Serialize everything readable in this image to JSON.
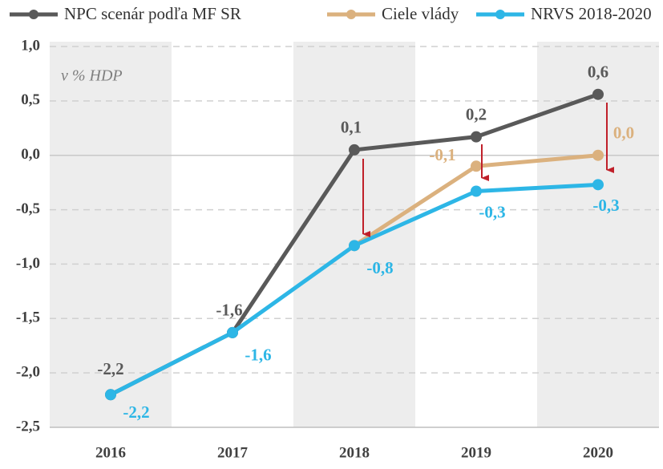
{
  "chart_data": {
    "type": "line",
    "annotation": "v % HDP",
    "categories": [
      "2016",
      "2017",
      "2018",
      "2019",
      "2020"
    ],
    "series": [
      {
        "name": "NPC scenár podľa MF SR",
        "color": "#595959",
        "values": [
          -2.2,
          -1.63,
          0.05,
          0.17,
          0.56
        ],
        "value_labels": [
          "-2,2",
          "-1,6",
          "0,1",
          "0,2",
          "0,6"
        ]
      },
      {
        "name": "Ciele vlády",
        "color": "#dbb17e",
        "values": [
          null,
          null,
          -0.83,
          -0.1,
          0.0
        ],
        "value_labels": [
          null,
          null,
          null,
          "-0,1",
          "0,0"
        ]
      },
      {
        "name": "NRVS 2018-2020",
        "color": "#2db6e6",
        "values": [
          -2.2,
          -1.63,
          -0.83,
          -0.33,
          -0.27
        ],
        "value_labels": [
          "-2,2",
          "-1,6",
          "-0,8",
          "-0,3",
          "-0,3"
        ]
      }
    ],
    "ylim": [
      -2.5,
      1.0
    ],
    "yticks": [
      {
        "value": -2.5,
        "label": "-2,5"
      },
      {
        "value": -2.0,
        "label": "-2,0"
      },
      {
        "value": -1.5,
        "label": "-1,5"
      },
      {
        "value": -1.0,
        "label": "-1,0"
      },
      {
        "value": -0.5,
        "label": "-0,5"
      },
      {
        "value": 0.0,
        "label": "0,0"
      },
      {
        "value": 0.5,
        "label": "0,5"
      },
      {
        "value": 1.0,
        "label": "1,0"
      }
    ],
    "grid": true,
    "legend": "top"
  }
}
